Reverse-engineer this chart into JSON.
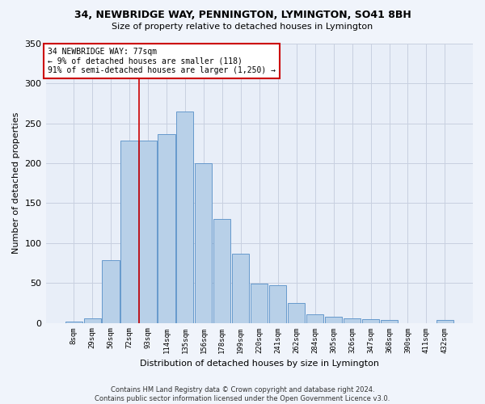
{
  "title1": "34, NEWBRIDGE WAY, PENNINGTON, LYMINGTON, SO41 8BH",
  "title2": "Size of property relative to detached houses in Lymington",
  "xlabel": "Distribution of detached houses by size in Lymington",
  "ylabel": "Number of detached properties",
  "footnote1": "Contains HM Land Registry data © Crown copyright and database right 2024.",
  "footnote2": "Contains public sector information licensed under the Open Government Licence v3.0.",
  "annotation_line1": "34 NEWBRIDGE WAY: 77sqm",
  "annotation_line2": "← 9% of detached houses are smaller (118)",
  "annotation_line3": "91% of semi-detached houses are larger (1,250) →",
  "bar_labels": [
    "8sqm",
    "29sqm",
    "50sqm",
    "72sqm",
    "93sqm",
    "114sqm",
    "135sqm",
    "156sqm",
    "178sqm",
    "199sqm",
    "220sqm",
    "241sqm",
    "262sqm",
    "284sqm",
    "305sqm",
    "326sqm",
    "347sqm",
    "368sqm",
    "390sqm",
    "411sqm",
    "432sqm"
  ],
  "bar_values": [
    2,
    6,
    79,
    228,
    228,
    237,
    265,
    200,
    130,
    87,
    49,
    47,
    25,
    11,
    8,
    6,
    5,
    4,
    0,
    0,
    4
  ],
  "bar_color": "#b8d0e8",
  "bar_edge_color": "#6699cc",
  "vline_x": 3.5,
  "vline_color": "#cc0000",
  "bg_color": "#e8eef8",
  "grid_color": "#c8d0e0",
  "ylim": [
    0,
    350
  ],
  "yticks": [
    0,
    50,
    100,
    150,
    200,
    250,
    300,
    350
  ],
  "annotation_box_color": "#cc0000",
  "annotation_bg": "#ffffff",
  "title1_fontsize": 9,
  "title2_fontsize": 8
}
